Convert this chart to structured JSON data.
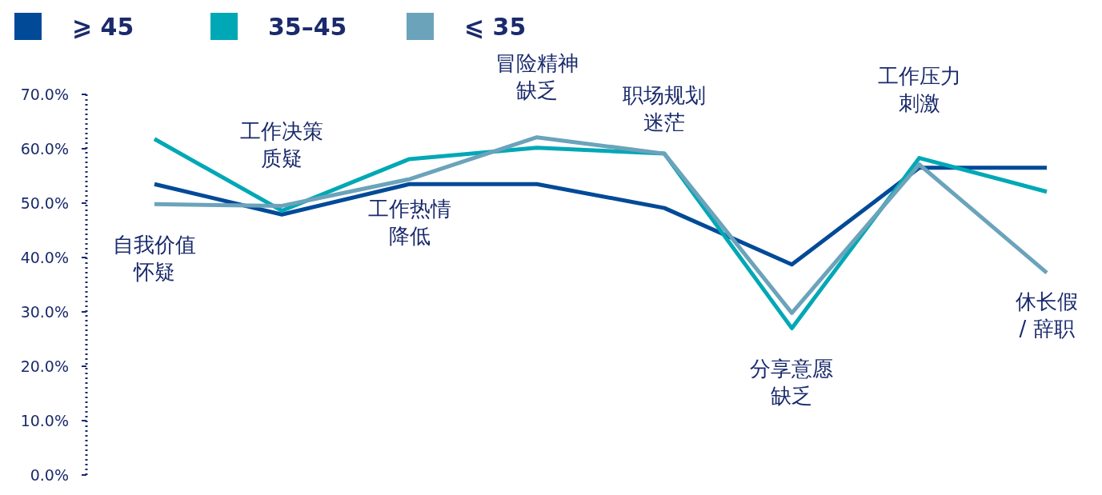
{
  "chart_data": {
    "type": "line",
    "categories": [
      "自我价值怀疑",
      "工作决策质疑",
      "工作热情降低",
      "冒险精神缺乏",
      "职场规划迷茫",
      "分享意愿缺乏",
      "工作压力刺激",
      "休长假\n/ 辞职"
    ],
    "series": [
      {
        "name": "⩾ 45",
        "color": "#004a98",
        "values": [
          53.5,
          47.9,
          53.5,
          53.5,
          49.1,
          38.7,
          56.5,
          56.5
        ]
      },
      {
        "name": "35–45",
        "color": "#00a8b5",
        "values": [
          61.8,
          48.6,
          58.1,
          60.2,
          59.1,
          27.0,
          58.3,
          52.1
        ]
      },
      {
        "name": "⩽ 35",
        "color": "#6ba3bb",
        "values": [
          49.8,
          49.5,
          54.4,
          62.1,
          59.1,
          29.8,
          57.1,
          37.2
        ]
      }
    ],
    "ylim": [
      0,
      70
    ],
    "yticks": [
      {
        "value": 0,
        "label": "0.0%"
      },
      {
        "value": 10,
        "label": "10.0%"
      },
      {
        "value": 20,
        "label": "20.0%"
      },
      {
        "value": 30,
        "label": "30.0%"
      },
      {
        "value": 40,
        "label": "40.0%"
      },
      {
        "value": 50,
        "label": "50.0%"
      },
      {
        "value": 60,
        "label": "60.0%"
      },
      {
        "value": 70,
        "label": "70.0%"
      }
    ],
    "grid": false,
    "legend": "top left",
    "marker": "none",
    "line_style": "solid"
  }
}
